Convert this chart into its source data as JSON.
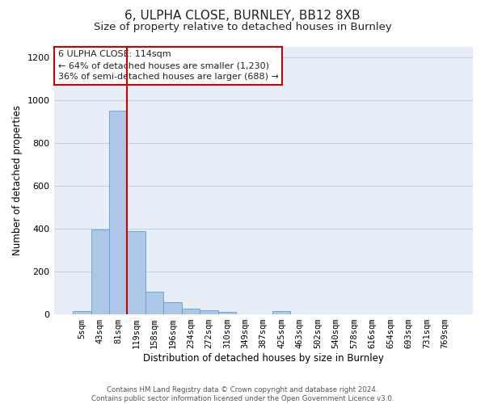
{
  "title1": "6, ULPHA CLOSE, BURNLEY, BB12 8XB",
  "title2": "Size of property relative to detached houses in Burnley",
  "xlabel": "Distribution of detached houses by size in Burnley",
  "ylabel": "Number of detached properties",
  "categories": [
    "5sqm",
    "43sqm",
    "81sqm",
    "119sqm",
    "158sqm",
    "196sqm",
    "234sqm",
    "272sqm",
    "310sqm",
    "349sqm",
    "387sqm",
    "425sqm",
    "463sqm",
    "502sqm",
    "540sqm",
    "578sqm",
    "616sqm",
    "654sqm",
    "693sqm",
    "731sqm",
    "769sqm"
  ],
  "values": [
    15,
    395,
    950,
    390,
    105,
    55,
    25,
    18,
    12,
    0,
    0,
    15,
    0,
    0,
    0,
    0,
    0,
    0,
    0,
    0,
    0
  ],
  "bar_color": "#aec6e8",
  "bar_edgecolor": "#5a9fd4",
  "vline_x_idx": 3,
  "vline_color": "#cc0000",
  "annotation_line1": "6 ULPHA CLOSE: 114sqm",
  "annotation_line2": "← 64% of detached houses are smaller (1,230)",
  "annotation_line3": "36% of semi-detached houses are larger (688) →",
  "annotation_box_color": "#ffffff",
  "annotation_box_edgecolor": "#cc0000",
  "ylim": [
    0,
    1250
  ],
  "yticks": [
    0,
    200,
    400,
    600,
    800,
    1000,
    1200
  ],
  "bg_color": "#e8eef8",
  "grid_color": "#c8d0e0",
  "footer_text": "Contains HM Land Registry data © Crown copyright and database right 2024.\nContains public sector information licensed under the Open Government Licence v3.0.",
  "title_fontsize": 11,
  "subtitle_fontsize": 9.5,
  "tick_fontsize": 7.5,
  "ylabel_fontsize": 8.5,
  "xlabel_fontsize": 8.5,
  "annotation_fontsize": 8.0
}
